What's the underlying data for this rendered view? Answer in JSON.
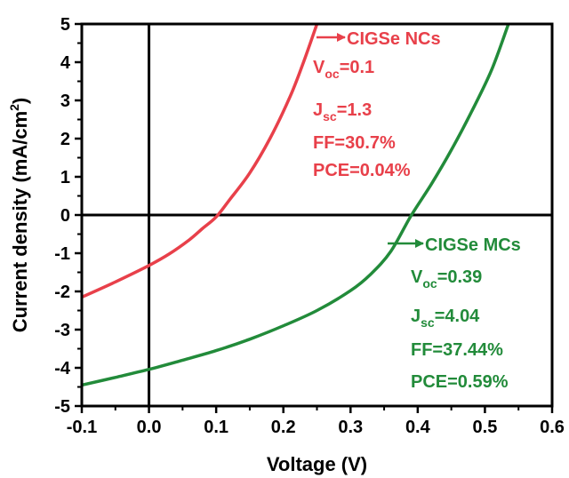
{
  "chart_data": {
    "type": "line",
    "xlabel": "Voltage (V)",
    "ylabel": {
      "main": "Current density (mA/cm",
      "sup": "2",
      "close": ")"
    },
    "xlim": [
      -0.1,
      0.6
    ],
    "ylim": [
      -5,
      5
    ],
    "x_ticks": [
      "-0.1",
      "0.0",
      "0.1",
      "0.2",
      "0.3",
      "0.4",
      "0.5",
      "0.6"
    ],
    "y_ticks": [
      "-5",
      "-4",
      "-3",
      "-2",
      "-1",
      "0",
      "1",
      "2",
      "3",
      "4",
      "5"
    ],
    "grid": false,
    "zero_lines": true,
    "series": [
      {
        "color": "#e8404a",
        "points": [
          [
            -0.1,
            -2.15
          ],
          [
            -0.05,
            -1.75
          ],
          [
            0.0,
            -1.32
          ],
          [
            0.03,
            -1.02
          ],
          [
            0.06,
            -0.65
          ],
          [
            0.08,
            -0.35
          ],
          [
            0.1,
            -0.05
          ],
          [
            0.12,
            0.4
          ],
          [
            0.15,
            1.1
          ],
          [
            0.18,
            2.0
          ],
          [
            0.21,
            3.1
          ],
          [
            0.23,
            4.0
          ],
          [
            0.25,
            5.0
          ]
        ],
        "annotation": {
          "label": "CIGSe NCs",
          "voc": {
            "main": "V",
            "sub": "oc",
            "value": "=0.1"
          },
          "jsc": {
            "main": "J",
            "sub": "sc",
            "value": "=1.3"
          },
          "ff": "FF=30.7%",
          "pce": "PCE=0.04%"
        }
      },
      {
        "color": "#228b3a",
        "points": [
          [
            -0.1,
            -4.45
          ],
          [
            -0.05,
            -4.25
          ],
          [
            0.0,
            -4.04
          ],
          [
            0.05,
            -3.8
          ],
          [
            0.1,
            -3.55
          ],
          [
            0.15,
            -3.25
          ],
          [
            0.2,
            -2.9
          ],
          [
            0.25,
            -2.5
          ],
          [
            0.3,
            -1.98
          ],
          [
            0.33,
            -1.55
          ],
          [
            0.36,
            -0.95
          ],
          [
            0.39,
            -0.02
          ],
          [
            0.42,
            0.8
          ],
          [
            0.45,
            1.7
          ],
          [
            0.48,
            2.7
          ],
          [
            0.51,
            3.8
          ],
          [
            0.535,
            5.0
          ]
        ],
        "annotation": {
          "label": "CIGSe MCs",
          "voc": {
            "main": "V",
            "sub": "oc",
            "value": "=0.39"
          },
          "jsc": {
            "main": "J",
            "sub": "sc",
            "value": "=4.04"
          },
          "ff": "FF=37.44%",
          "pce": "PCE=0.59%"
        }
      }
    ]
  }
}
